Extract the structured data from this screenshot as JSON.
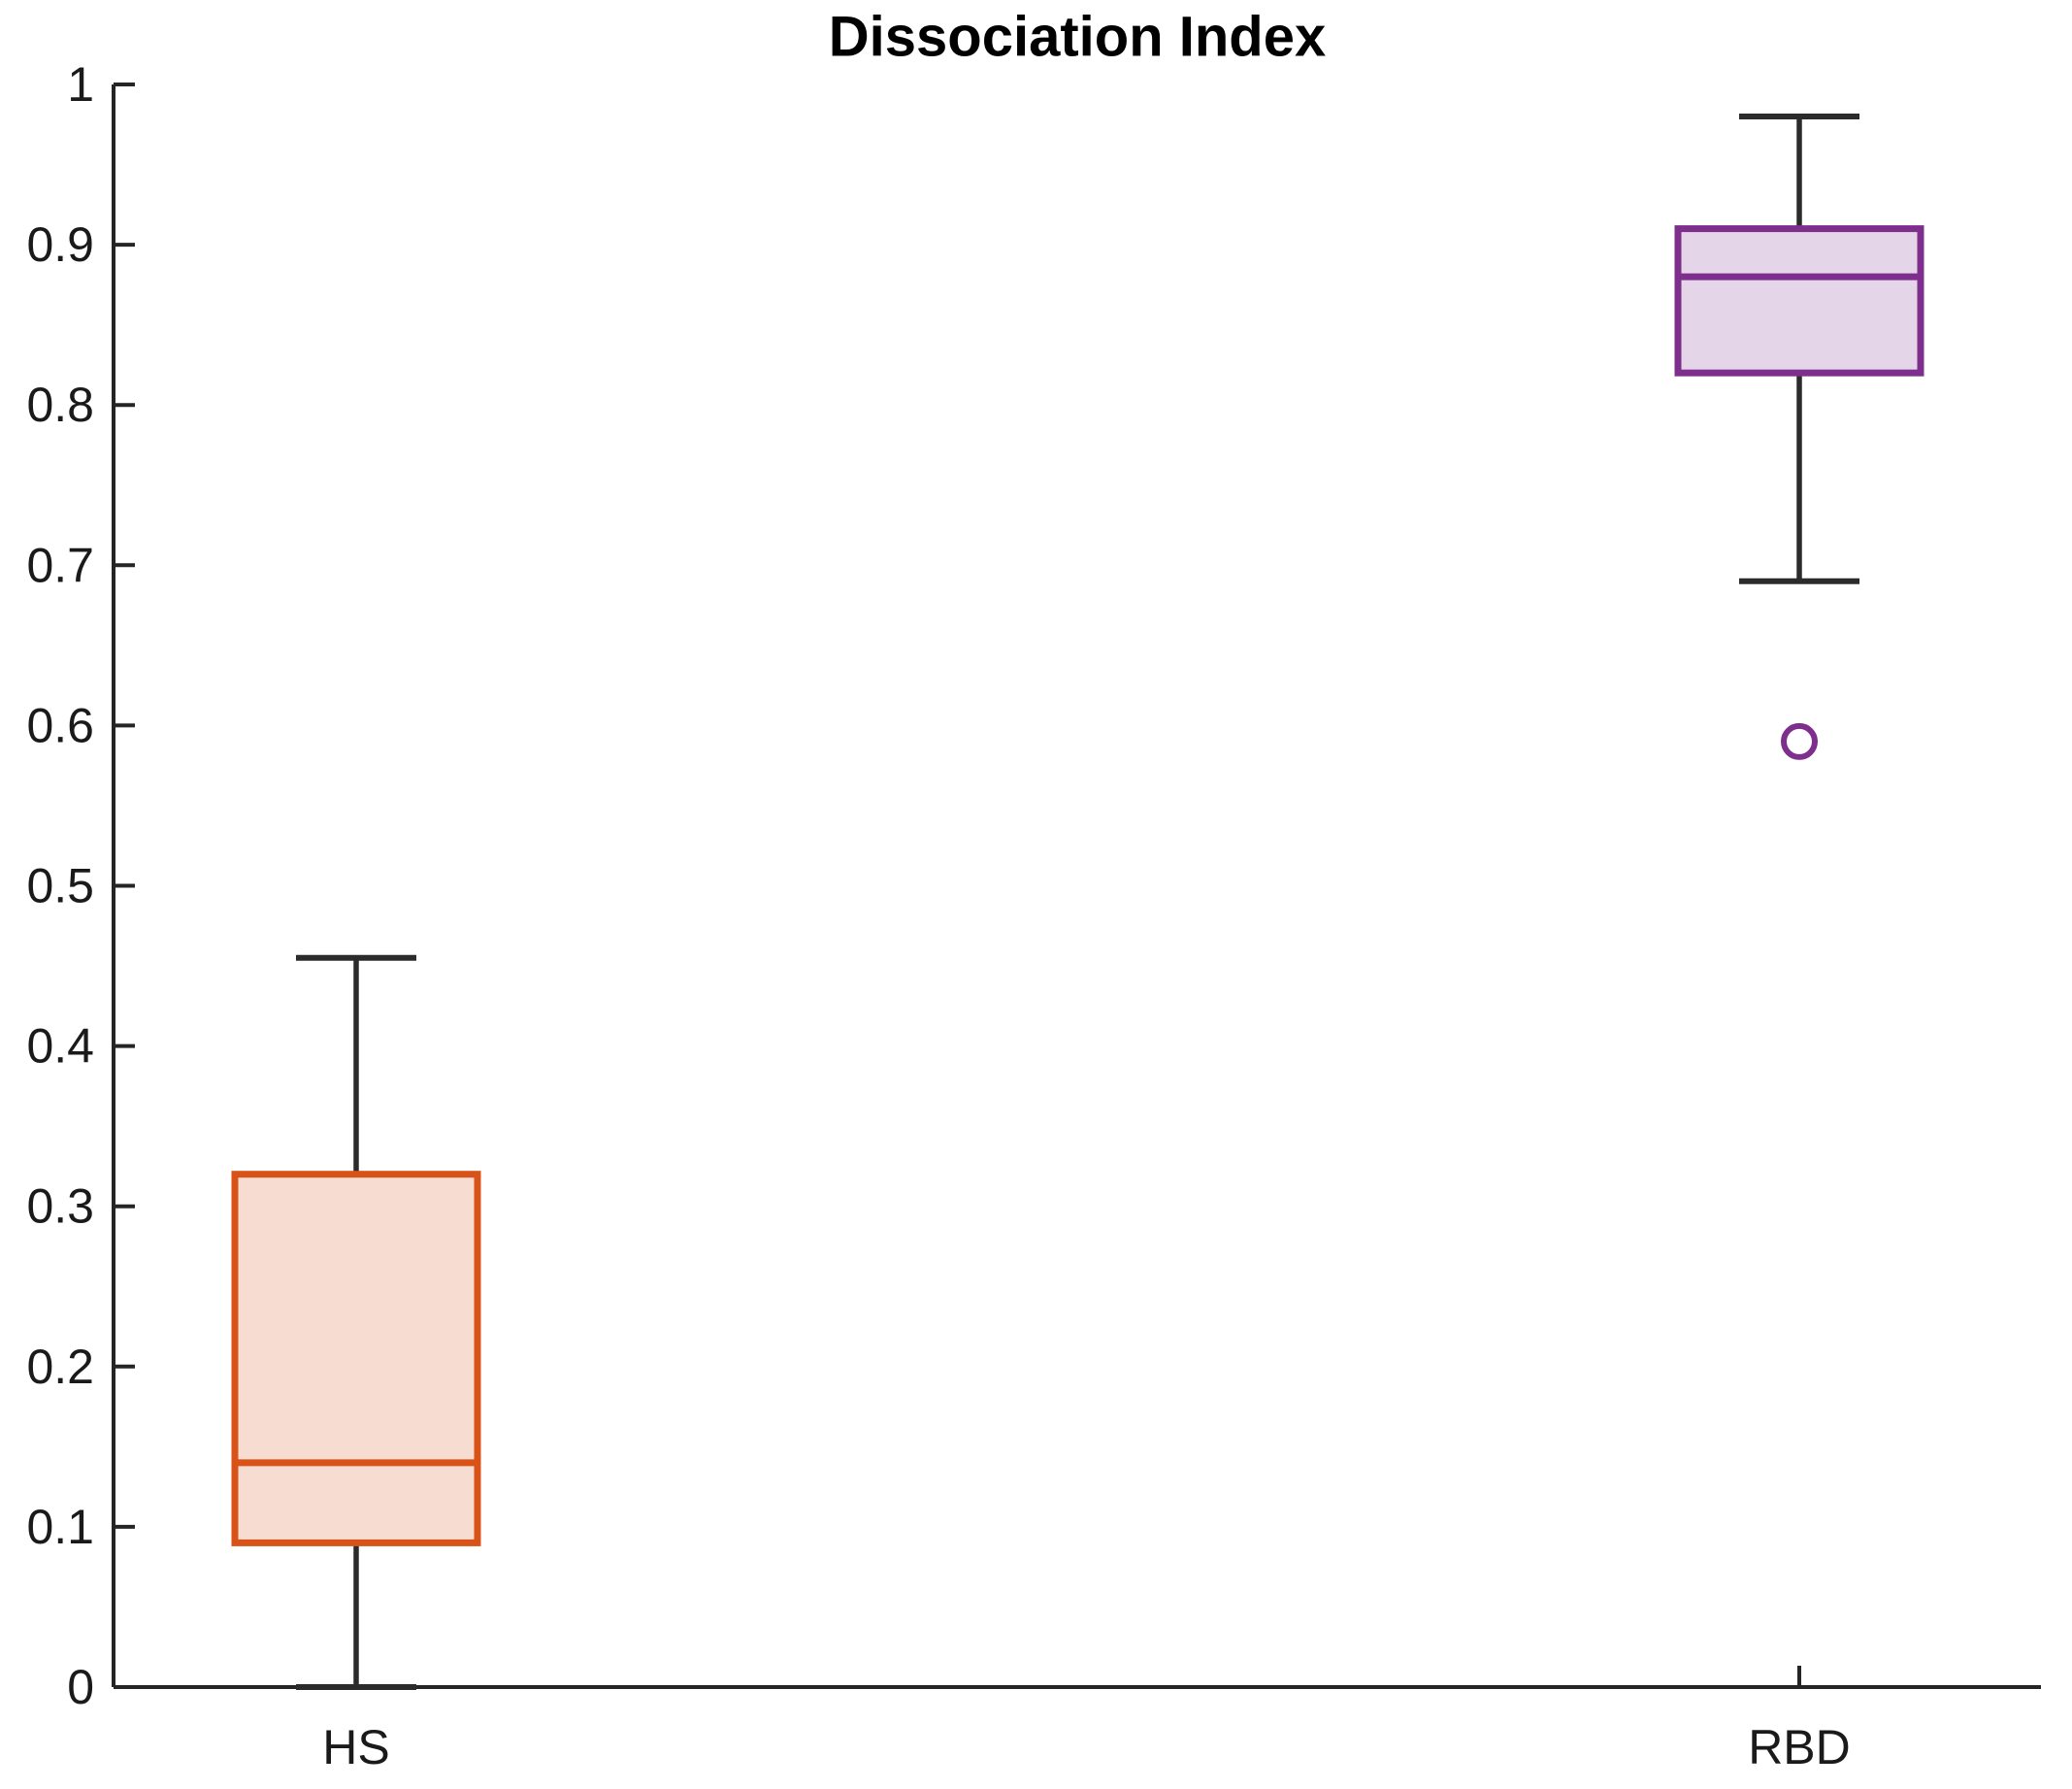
{
  "figure": {
    "background_color": "#ffffff"
  },
  "chart_data": {
    "type": "boxplot",
    "title": "Dissociation Index",
    "xlabel": "",
    "ylabel": "",
    "categories": [
      "HS",
      "RBD"
    ],
    "ylim": [
      0,
      1
    ],
    "yticks": [
      0,
      0.1,
      0.2,
      0.3,
      0.4,
      0.5,
      0.6,
      0.7,
      0.8,
      0.9,
      1
    ],
    "ytick_labels": [
      "0",
      "0.1",
      "0.2",
      "0.3",
      "0.4",
      "0.5",
      "0.6",
      "0.7",
      "0.8",
      "0.9",
      "1"
    ],
    "grid": false,
    "legend": false,
    "axis_color": "#252525",
    "whisker_color": "#2b2b2b",
    "text_color": "#1a1a1a",
    "title_color": "#000000",
    "series": [
      {
        "name": "HS",
        "color": "#D95319",
        "fill_opacity": 0.2,
        "whisker_low": 0.0,
        "q1": 0.09,
        "median": 0.14,
        "q3": 0.32,
        "whisker_high": 0.455,
        "outliers": []
      },
      {
        "name": "RBD",
        "color": "#7E2F8E",
        "fill_opacity": 0.2,
        "whisker_low": 0.69,
        "q1": 0.82,
        "median": 0.88,
        "q3": 0.91,
        "whisker_high": 0.98,
        "outliers": [
          0.59
        ]
      }
    ]
  }
}
